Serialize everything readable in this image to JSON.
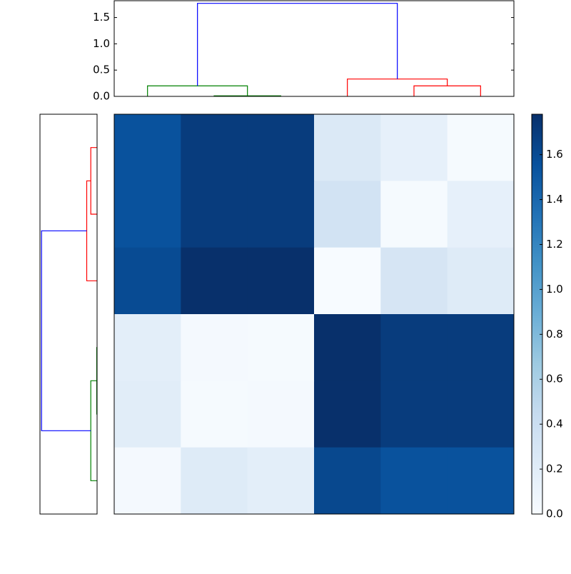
{
  "chart_data": [
    {
      "type": "dendrogram",
      "orientation": "top",
      "xlim": [
        0,
        60
      ],
      "ylim": [
        0,
        1.82
      ],
      "yticks": [
        {
          "value": 0,
          "label": "0.0"
        },
        0.5,
        {
          "value": 1,
          "label": "1.0"
        },
        1.5
      ],
      "links": [
        {
          "color": "#008000",
          "x": [
            5,
            5,
            20,
            20
          ],
          "y": [
            0,
            0.2,
            0.2,
            0.01
          ]
        },
        {
          "color": "#008000",
          "x": [
            15,
            15,
            25,
            25
          ],
          "y": [
            0,
            0.01,
            0.01,
            0
          ]
        },
        {
          "color": "#ff0000",
          "x": [
            45,
            45,
            55,
            55
          ],
          "y": [
            0,
            0.2,
            0.2,
            0
          ]
        },
        {
          "color": "#ff0000",
          "x": [
            35,
            35,
            50,
            50
          ],
          "y": [
            0,
            0.33,
            0.33,
            0.2
          ]
        },
        {
          "color": "#0000ff",
          "x": [
            12.5,
            12.5,
            42.5,
            42.5
          ],
          "y": [
            0.2,
            1.77,
            1.77,
            0.33
          ]
        }
      ]
    },
    {
      "type": "dendrogram",
      "orientation": "left",
      "xlim": [
        0,
        60
      ],
      "ylim": [
        0,
        1.82
      ],
      "links": [
        {
          "color": "#008000",
          "x": [
            5,
            5,
            20,
            20
          ],
          "y": [
            0,
            0.2,
            0.2,
            0.01
          ]
        },
        {
          "color": "#008000",
          "x": [
            15,
            15,
            25,
            25
          ],
          "y": [
            0,
            0.01,
            0.01,
            0
          ]
        },
        {
          "color": "#ff0000",
          "x": [
            45,
            45,
            55,
            55
          ],
          "y": [
            0,
            0.2,
            0.2,
            0
          ]
        },
        {
          "color": "#ff0000",
          "x": [
            35,
            35,
            50,
            50
          ],
          "y": [
            0,
            0.33,
            0.33,
            0.2
          ]
        },
        {
          "color": "#0000ff",
          "x": [
            12.5,
            12.5,
            42.5,
            42.5
          ],
          "y": [
            0.2,
            1.77,
            1.77,
            0.33
          ]
        }
      ]
    },
    {
      "type": "heatmap",
      "colormap": "Blues",
      "clim": [
        0,
        1.78
      ],
      "values": [
        [
          1.55,
          1.7,
          1.7,
          0.25,
          0.15,
          0.02
        ],
        [
          1.55,
          1.7,
          1.7,
          0.33,
          0.02,
          0.15
        ],
        [
          1.6,
          1.78,
          1.78,
          0,
          0.3,
          0.22
        ],
        [
          0.18,
          0.03,
          0.02,
          1.78,
          1.7,
          1.7
        ],
        [
          0.2,
          0.02,
          0.03,
          1.78,
          1.7,
          1.7
        ],
        [
          0.03,
          0.22,
          0.18,
          1.62,
          1.55,
          1.55
        ]
      ],
      "cticks": [
        {
          "value": 0,
          "label": "0.0"
        },
        0.2,
        0.4,
        0.6,
        0.8,
        {
          "value": 1,
          "label": "1.0"
        },
        1.2,
        1.4,
        1.6
      ]
    }
  ]
}
